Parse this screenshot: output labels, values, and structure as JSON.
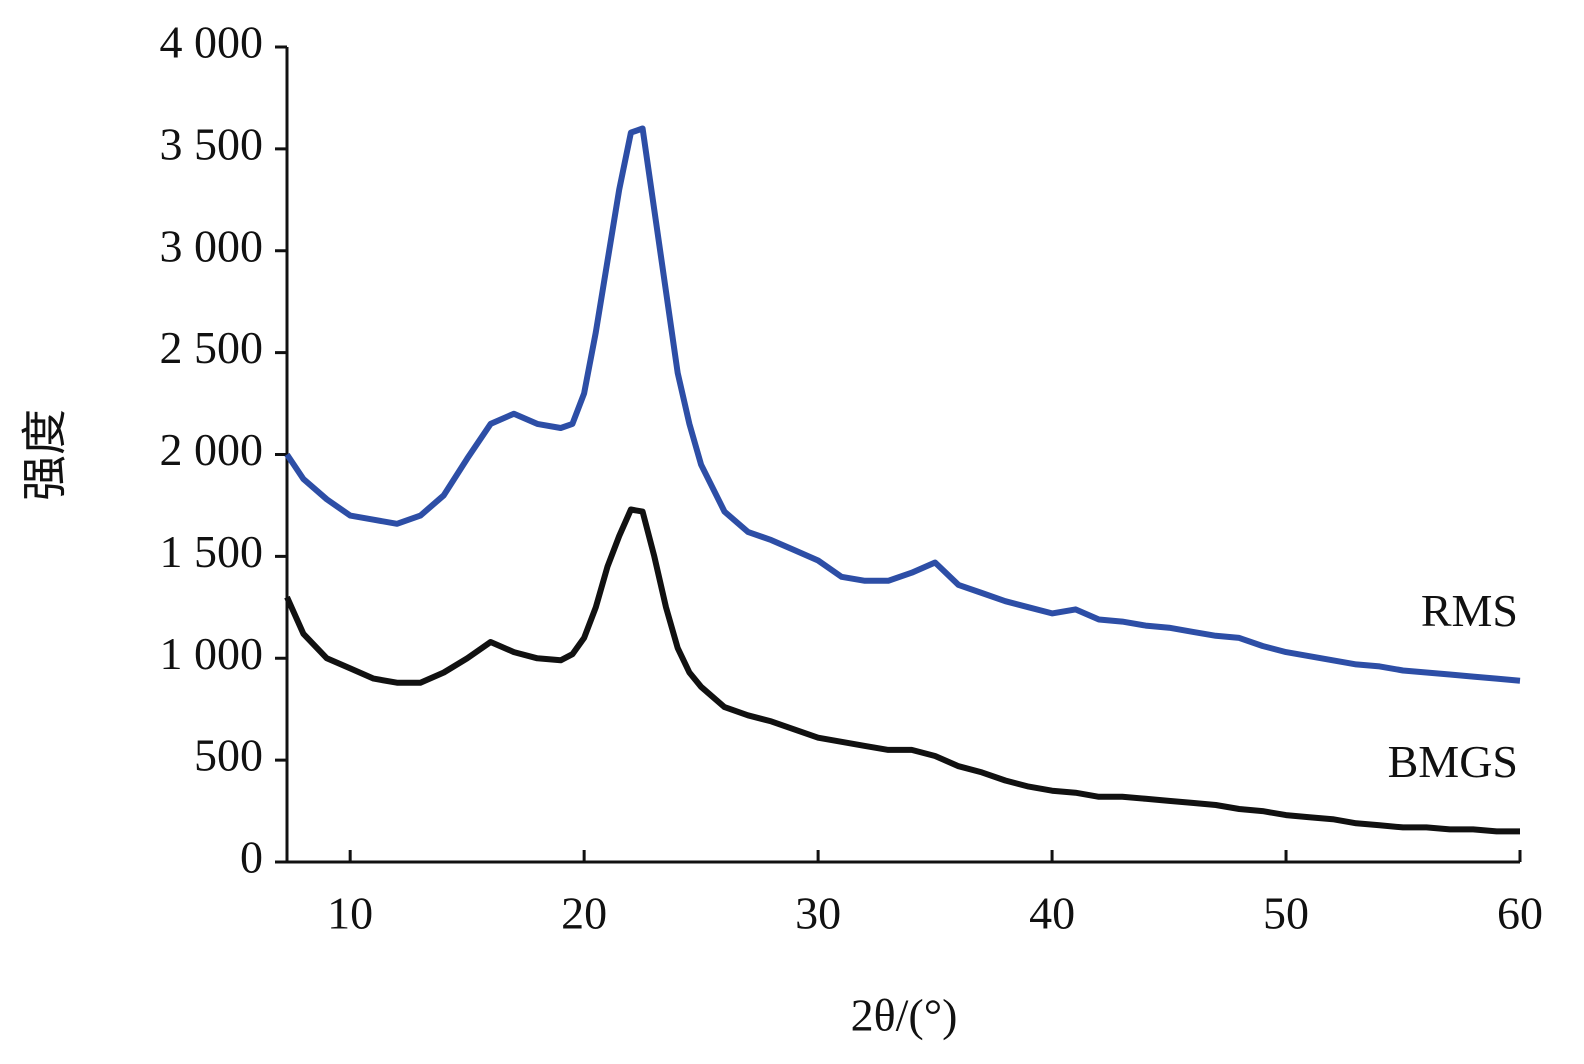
{
  "chart_data": {
    "type": "line",
    "x_label": "2θ/(°)",
    "y_label": "强度",
    "xlim": [
      7.3,
      60
    ],
    "xticks": [
      10,
      20,
      30,
      40,
      50,
      60
    ],
    "ylim": [
      0,
      4000
    ],
    "yticks": [
      0,
      500,
      {
        "value": 1000,
        "label": "1 000"
      },
      {
        "value": 1500,
        "label": "1 500"
      },
      {
        "value": 2000,
        "label": "2 000"
      },
      {
        "value": 2500,
        "label": "2 500"
      },
      {
        "value": 3000,
        "label": "3 000"
      },
      {
        "value": 3500,
        "label": "3 500"
      },
      {
        "value": 4000,
        "label": "4 000"
      }
    ],
    "grid": false,
    "x": [
      7.3,
      8,
      9,
      10,
      11,
      12,
      13,
      14,
      15,
      16,
      17,
      18,
      19,
      19.5,
      20,
      20.5,
      21,
      21.5,
      22,
      22.5,
      23,
      23.5,
      24,
      24.5,
      25,
      26,
      27,
      28,
      29,
      30,
      31,
      32,
      33,
      34,
      35,
      36,
      37,
      38,
      39,
      40,
      41,
      42,
      43,
      44,
      45,
      46,
      47,
      48,
      49,
      50,
      51,
      52,
      53,
      54,
      55,
      56,
      57,
      58,
      59,
      60
    ],
    "series": [
      {
        "name": "RMS",
        "color": "#2d4ea6",
        "values": [
          2000,
          1880,
          1780,
          1700,
          1680,
          1660,
          1700,
          1800,
          1980,
          2150,
          2200,
          2150,
          2130,
          2150,
          2300,
          2600,
          2950,
          3300,
          3580,
          3600,
          3200,
          2800,
          2400,
          2150,
          1950,
          1720,
          1620,
          1580,
          1530,
          1480,
          1400,
          1380,
          1380,
          1420,
          1470,
          1360,
          1320,
          1280,
          1250,
          1220,
          1240,
          1190,
          1180,
          1160,
          1150,
          1130,
          1110,
          1100,
          1060,
          1030,
          1010,
          990,
          970,
          960,
          940,
          930,
          920,
          910,
          900,
          890
        ]
      },
      {
        "name": "BMGS",
        "color": "#111111",
        "values": [
          1300,
          1120,
          1000,
          950,
          900,
          880,
          880,
          930,
          1000,
          1080,
          1030,
          1000,
          990,
          1020,
          1100,
          1250,
          1450,
          1600,
          1730,
          1720,
          1500,
          1250,
          1050,
          930,
          860,
          760,
          720,
          690,
          650,
          610,
          590,
          570,
          550,
          550,
          520,
          470,
          440,
          400,
          370,
          350,
          340,
          320,
          320,
          310,
          300,
          290,
          280,
          260,
          250,
          230,
          220,
          210,
          190,
          180,
          170,
          170,
          160,
          160,
          150,
          150
        ]
      }
    ]
  }
}
